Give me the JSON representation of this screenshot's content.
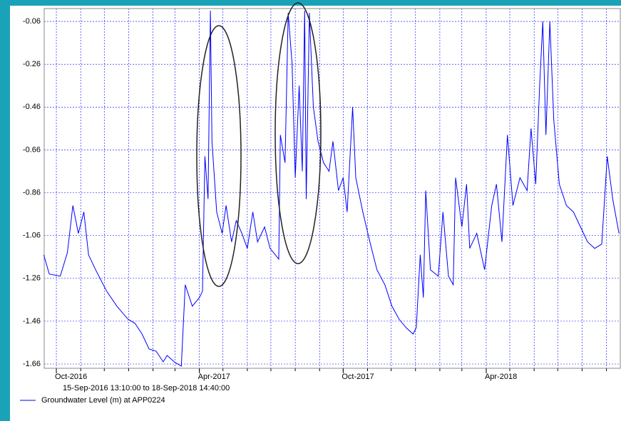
{
  "chart_data": {
    "type": "line",
    "subtitle": "15-Sep-2016 13:10:00 to 18-Sep-2018 14:40:00",
    "xlim": [
      "2016-09-15T13:10:00",
      "2018-09-18T14:40:00"
    ],
    "xticks": [
      {
        "value": "2016-10-01",
        "label": "Oct-2016"
      },
      {
        "value": "2017-04-01",
        "label": "Apr-2017"
      },
      {
        "value": "2017-10-01",
        "label": "Oct-2017"
      },
      {
        "value": "2018-04-01",
        "label": "Apr-2018"
      }
    ],
    "x_minor_ticks": [
      "2016-10-01",
      "2016-11-01",
      "2016-12-01",
      "2017-01-01",
      "2017-02-01",
      "2017-03-01",
      "2017-04-01",
      "2017-05-01",
      "2017-06-01",
      "2017-07-01",
      "2017-08-01",
      "2017-09-01",
      "2017-10-01",
      "2017-11-01",
      "2017-12-01",
      "2018-01-01",
      "2018-02-01",
      "2018-03-01",
      "2018-04-01",
      "2018-05-01",
      "2018-06-01",
      "2018-07-01",
      "2018-08-01",
      "2018-09-01"
    ],
    "ylim": [
      -1.68,
      0.0
    ],
    "yticks": [
      -0.06,
      -0.26,
      -0.46,
      -0.66,
      -0.86,
      -1.06,
      -1.26,
      -1.46,
      -1.66
    ],
    "grid": true,
    "x": [
      "2016-09-15",
      "2016-09-22",
      "2016-10-06",
      "2016-10-15",
      "2016-10-22",
      "2016-10-29",
      "2016-11-05",
      "2016-11-11",
      "2016-11-20",
      "2016-12-04",
      "2016-12-17",
      "2016-12-31",
      "2017-01-09",
      "2017-01-18",
      "2017-01-27",
      "2017-02-05",
      "2017-02-14",
      "2017-02-19",
      "2017-02-28",
      "2017-03-09",
      "2017-03-14",
      "2017-03-23",
      "2017-04-01",
      "2017-04-05",
      "2017-04-08",
      "2017-04-12",
      "2017-04-15",
      "2017-04-17",
      "2017-04-23",
      "2017-04-30",
      "2017-05-05",
      "2017-05-12",
      "2017-05-18",
      "2017-05-25",
      "2017-06-01",
      "2017-06-08",
      "2017-06-14",
      "2017-06-23",
      "2017-06-30",
      "2017-07-11",
      "2017-07-13",
      "2017-07-19",
      "2017-07-23",
      "2017-07-28",
      "2017-08-01",
      "2017-08-06",
      "2017-08-10",
      "2017-08-13",
      "2017-08-15",
      "2017-08-19",
      "2017-08-24",
      "2017-08-30",
      "2017-09-06",
      "2017-09-13",
      "2017-09-18",
      "2017-09-25",
      "2017-10-01",
      "2017-10-06",
      "2017-10-13",
      "2017-10-17",
      "2017-10-26",
      "2017-11-04",
      "2017-11-13",
      "2017-11-23",
      "2017-12-02",
      "2017-12-11",
      "2017-12-20",
      "2017-12-29",
      "2018-01-02",
      "2018-01-07",
      "2018-01-11",
      "2018-01-14",
      "2018-01-20",
      "2018-01-30",
      "2018-02-05",
      "2018-02-12",
      "2018-02-18",
      "2018-02-21",
      "2018-03-01",
      "2018-03-07",
      "2018-03-11",
      "2018-03-20",
      "2018-03-30",
      "2018-04-08",
      "2018-04-14",
      "2018-04-21",
      "2018-04-28",
      "2018-05-05",
      "2018-05-14",
      "2018-05-23",
      "2018-05-28",
      "2018-06-03",
      "2018-06-08",
      "2018-06-12",
      "2018-06-16",
      "2018-06-21",
      "2018-06-26",
      "2018-07-03",
      "2018-07-12",
      "2018-07-21",
      "2018-07-30",
      "2018-08-08",
      "2018-08-17",
      "2018-08-26",
      "2018-09-02",
      "2018-09-09",
      "2018-09-17"
    ],
    "series": [
      {
        "name": "Groundwater Level (m) at APP0224",
        "color": "#0000ff",
        "values": [
          -1.15,
          -1.24,
          -1.25,
          -1.14,
          -0.92,
          -1.05,
          -0.95,
          -1.15,
          -1.22,
          -1.32,
          -1.39,
          -1.45,
          -1.47,
          -1.52,
          -1.59,
          -1.6,
          -1.65,
          -1.62,
          -1.65,
          -1.67,
          -1.29,
          -1.39,
          -1.35,
          -1.32,
          -0.69,
          -0.89,
          -0.01,
          -0.62,
          -0.95,
          -1.05,
          -0.92,
          -1.09,
          -0.99,
          -1.05,
          -1.12,
          -0.95,
          -1.09,
          -1.02,
          -1.12,
          -1.17,
          -0.59,
          -0.72,
          -0.02,
          -0.26,
          -0.79,
          -0.36,
          -0.76,
          -0.01,
          -0.89,
          -0.02,
          -0.46,
          -0.62,
          -0.72,
          -0.76,
          -0.62,
          -0.85,
          -0.79,
          -0.95,
          -0.46,
          -0.79,
          -0.95,
          -1.09,
          -1.22,
          -1.29,
          -1.39,
          -1.45,
          -1.49,
          -1.52,
          -1.49,
          -1.15,
          -1.35,
          -0.85,
          -1.22,
          -1.25,
          -0.95,
          -1.25,
          -1.29,
          -0.79,
          -1.02,
          -0.82,
          -1.12,
          -1.05,
          -1.22,
          -0.92,
          -0.82,
          -1.09,
          -0.59,
          -0.92,
          -0.79,
          -0.85,
          -0.56,
          -0.82,
          -0.36,
          -0.06,
          -0.59,
          -0.06,
          -0.52,
          -0.82,
          -0.92,
          -0.95,
          -1.02,
          -1.09,
          -1.12,
          -1.1,
          -0.69,
          -0.89,
          -1.05
        ]
      }
    ]
  }
}
